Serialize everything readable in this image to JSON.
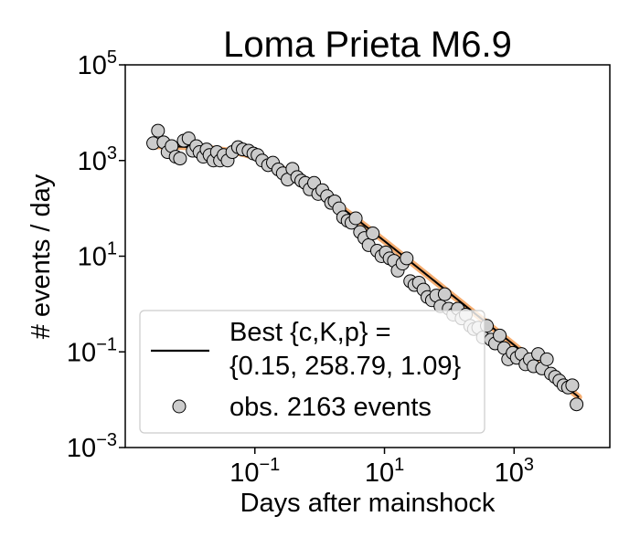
{
  "chart_data": {
    "type": "scatter",
    "title": "Loma Prieta M6.9",
    "xlabel": "Days after mainshock",
    "ylabel": "# events / day",
    "x_scale": "log",
    "y_scale": "log",
    "xlim": [
      0.001,
      30000
    ],
    "ylim": [
      0.001,
      100000
    ],
    "x_ticks": [
      {
        "value": 0.1,
        "base": "10",
        "exp": "−1"
      },
      {
        "value": 10,
        "base": "10",
        "exp": "1"
      },
      {
        "value": 1000,
        "base": "10",
        "exp": "3"
      }
    ],
    "y_ticks": [
      {
        "value": 0.001,
        "base": "10",
        "exp": "−3"
      },
      {
        "value": 0.1,
        "base": "10",
        "exp": "−1"
      },
      {
        "value": 10,
        "base": "10",
        "exp": "1"
      },
      {
        "value": 1000,
        "base": "10",
        "exp": "3"
      },
      {
        "value": 100000,
        "base": "10",
        "exp": "5"
      }
    ],
    "grid": false,
    "legend_position": "lower-left",
    "legend": {
      "fit_label_line1": "Best {c,K,p} =",
      "fit_label_line2": "{0.15, 258.79, 1.09}",
      "obs_label": "obs. 2163 events"
    },
    "fit": {
      "name": "Best {c,K,p} = {0.15, 258.79, 1.09}",
      "model": "omori",
      "c": 0.15,
      "K": 258.79,
      "p": 1.09,
      "color": "#000000",
      "band_color": "#f4a460"
    },
    "observations": {
      "name": "obs. 2163 events",
      "marker_fill": "#cccccc",
      "marker_edge": "#000000",
      "points": [
        [
          0.0027,
          2300
        ],
        [
          0.0032,
          4200
        ],
        [
          0.0039,
          2400
        ],
        [
          0.0045,
          1500
        ],
        [
          0.0052,
          2000
        ],
        [
          0.006,
          1200
        ],
        [
          0.007,
          1100
        ],
        [
          0.008,
          2600
        ],
        [
          0.0095,
          2900
        ],
        [
          0.011,
          1600
        ],
        [
          0.0125,
          2000
        ],
        [
          0.014,
          1500
        ],
        [
          0.016,
          1200
        ],
        [
          0.018,
          1700
        ],
        [
          0.02,
          1300
        ],
        [
          0.023,
          1000
        ],
        [
          0.026,
          1500
        ],
        [
          0.029,
          1000
        ],
        [
          0.033,
          1300
        ],
        [
          0.038,
          1000
        ],
        [
          0.045,
          1500
        ],
        [
          0.055,
          1900
        ],
        [
          0.065,
          1700
        ],
        [
          0.08,
          1600
        ],
        [
          0.095,
          1400
        ],
        [
          0.11,
          1300
        ],
        [
          0.13,
          1000
        ],
        [
          0.16,
          800
        ],
        [
          0.19,
          900
        ],
        [
          0.23,
          650
        ],
        [
          0.27,
          540
        ],
        [
          0.32,
          400
        ],
        [
          0.38,
          670
        ],
        [
          0.45,
          450
        ],
        [
          0.52,
          380
        ],
        [
          0.6,
          340
        ],
        [
          0.7,
          250
        ],
        [
          0.82,
          340
        ],
        [
          0.95,
          200
        ],
        [
          1.1,
          240
        ],
        [
          1.3,
          180
        ],
        [
          1.5,
          130
        ],
        [
          1.7,
          140
        ],
        [
          2.0,
          100
        ],
        [
          2.3,
          65
        ],
        [
          2.7,
          55
        ],
        [
          3.1,
          50
        ],
        [
          3.6,
          62
        ],
        [
          4.2,
          32
        ],
        [
          4.9,
          24
        ],
        [
          5.7,
          17
        ],
        [
          6.6,
          30
        ],
        [
          7.7,
          13
        ],
        [
          9.0,
          10
        ],
        [
          10.5,
          12
        ],
        [
          12,
          9
        ],
        [
          14,
          8
        ],
        [
          16,
          5
        ],
        [
          19,
          7
        ],
        [
          22,
          9
        ],
        [
          25,
          3
        ],
        [
          29,
          2.5
        ],
        [
          34,
          2.8
        ],
        [
          40,
          2
        ],
        [
          46,
          1.4
        ],
        [
          54,
          1.2
        ],
        [
          63,
          1.5
        ],
        [
          73,
          0.9
        ],
        [
          85,
          1.6
        ],
        [
          98,
          0.8
        ],
        [
          115,
          0.6
        ],
        [
          135,
          0.8
        ],
        [
          155,
          0.5
        ],
        [
          180,
          0.6
        ],
        [
          210,
          0.35
        ],
        [
          240,
          0.3
        ],
        [
          280,
          0.32
        ],
        [
          330,
          0.2
        ],
        [
          380,
          0.35
        ],
        [
          440,
          0.18
        ],
        [
          510,
          0.15
        ],
        [
          600,
          0.22
        ],
        [
          700,
          0.12
        ],
        [
          810,
          0.07
        ],
        [
          950,
          0.095
        ],
        [
          1100,
          0.075
        ],
        [
          1300,
          0.09
        ],
        [
          1500,
          0.055
        ],
        [
          1750,
          0.07
        ],
        [
          2000,
          0.05
        ],
        [
          2350,
          0.09
        ],
        [
          2700,
          0.045
        ],
        [
          3200,
          0.07
        ],
        [
          3700,
          0.035
        ],
        [
          4300,
          0.03
        ],
        [
          5000,
          0.025
        ],
        [
          5800,
          0.02
        ],
        [
          6800,
          0.018
        ],
        [
          7900,
          0.02
        ],
        [
          9200,
          0.008
        ]
      ]
    }
  }
}
